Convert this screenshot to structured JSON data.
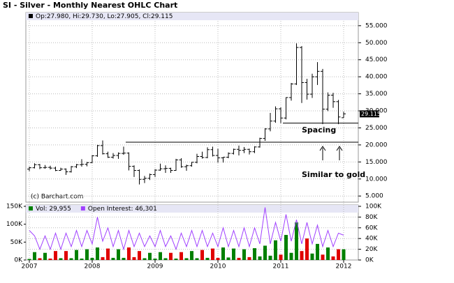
{
  "chart_data": [
    {
      "type": "ohlc",
      "title": "SI - Silver - Monthly Nearest OHLC Chart",
      "legend_text": "Op:27.980, Hi:29.730, Lo:27.905, Cl:29.115",
      "last_label": "29.115",
      "copyright": "(c) Barchart.com",
      "annotations": [
        "Spacing",
        "Similar to gold"
      ],
      "levels": [
        26.4,
        20.8
      ],
      "color": "#000000",
      "categories": [
        "2007",
        null,
        null,
        null,
        null,
        null,
        null,
        null,
        null,
        null,
        null,
        null,
        "2008",
        null,
        null,
        null,
        null,
        null,
        null,
        null,
        null,
        null,
        null,
        null,
        "2009",
        null,
        null,
        null,
        null,
        null,
        null,
        null,
        null,
        null,
        null,
        null,
        "2010",
        null,
        null,
        null,
        null,
        null,
        null,
        null,
        null,
        null,
        null,
        null,
        "2011",
        null,
        null,
        null,
        null,
        null,
        null,
        null,
        null,
        null,
        null,
        null,
        "2012"
      ],
      "open": [
        12.9,
        13.3,
        14.2,
        13.3,
        13.4,
        13.2,
        12.5,
        12.9,
        12.1,
        13.6,
        14.2,
        14.3,
        14.8,
        16.8,
        19.8,
        17.4,
        16.4,
        16.9,
        17.5,
        17.6,
        13.7,
        12.5,
        9.9,
        10.2,
        11.3,
        12.6,
        13.0,
        13.1,
        12.5,
        15.6,
        13.6,
        13.9,
        14.9,
        16.6,
        16.3,
        18.6,
        16.9,
        16.2,
        16.4,
        17.5,
        18.7,
        18.4,
        18.7,
        18.0,
        19.4,
        21.9,
        24.7,
        27.0,
        30.6,
        27.9,
        33.9,
        37.9,
        48.6,
        38.3,
        34.9,
        40.0,
        41.6,
        30.5,
        34.6,
        32.7,
        27.98
      ],
      "high": [
        13.6,
        14.6,
        14.4,
        14.1,
        13.9,
        13.6,
        13.3,
        13.1,
        13.8,
        14.4,
        15.8,
        15.0,
        17.0,
        20.0,
        21.3,
        18.0,
        17.6,
        17.8,
        19.5,
        17.8,
        14.0,
        12.8,
        10.9,
        11.6,
        12.9,
        14.5,
        14.0,
        13.3,
        15.9,
        16.1,
        14.2,
        15.0,
        17.4,
        18.0,
        19.3,
        19.5,
        18.9,
        16.4,
        17.8,
        18.9,
        19.8,
        19.4,
        18.9,
        19.6,
        22.1,
        24.9,
        29.4,
        31.3,
        31.0,
        34.0,
        38.2,
        49.8,
        49.0,
        39.4,
        40.9,
        44.3,
        42.3,
        35.4,
        35.3,
        33.2,
        29.73
      ],
      "low": [
        12.3,
        13.1,
        12.9,
        13.0,
        12.8,
        12.3,
        12.4,
        11.2,
        11.9,
        13.2,
        13.6,
        13.7,
        14.7,
        16.5,
        17.2,
        16.2,
        16.0,
        15.9,
        17.1,
        12.5,
        10.6,
        8.4,
        8.8,
        9.7,
        10.6,
        12.4,
        11.8,
        11.8,
        12.4,
        13.3,
        12.4,
        13.6,
        14.6,
        16.0,
        16.1,
        16.6,
        14.8,
        14.8,
        16.1,
        17.2,
        16.9,
        17.6,
        17.2,
        17.6,
        19.2,
        21.2,
        24.0,
        26.5,
        26.4,
        27.5,
        33.0,
        37.6,
        32.3,
        33.3,
        33.8,
        37.6,
        26.1,
        29.9,
        30.9,
        26.1,
        27.905
      ],
      "close": [
        13.3,
        14.2,
        13.3,
        13.4,
        13.2,
        12.5,
        12.9,
        12.1,
        13.6,
        14.2,
        14.3,
        14.8,
        16.8,
        19.8,
        17.4,
        16.4,
        16.9,
        17.5,
        17.6,
        13.7,
        12.5,
        9.9,
        10.2,
        11.3,
        12.6,
        13.0,
        13.1,
        12.5,
        15.6,
        13.6,
        13.9,
        14.9,
        16.6,
        16.3,
        18.6,
        16.9,
        16.2,
        16.4,
        17.5,
        18.7,
        18.4,
        18.7,
        18.0,
        19.4,
        21.9,
        24.7,
        27.0,
        30.6,
        27.9,
        33.9,
        37.9,
        48.6,
        38.3,
        34.9,
        40.0,
        41.6,
        30.5,
        34.6,
        32.7,
        28.2,
        29.115
      ],
      "ylim": [
        3.2,
        56.4
      ],
      "yticks": [
        {
          "value": 5,
          "label": "5.000"
        },
        {
          "value": 10,
          "label": "10.000"
        },
        {
          "value": 15,
          "label": "15.000"
        },
        {
          "value": 20,
          "label": "20.000"
        },
        {
          "value": 25,
          "label": "25.000"
        },
        {
          "value": 30,
          "label": "30.000"
        },
        {
          "value": 35,
          "label": "35.000"
        },
        {
          "value": 40,
          "label": "40.000"
        },
        {
          "value": 45,
          "label": "45.000"
        },
        {
          "value": 50,
          "label": "50.000"
        },
        {
          "value": 55,
          "label": "55.000"
        }
      ],
      "grid": true
    },
    {
      "type": "bar",
      "up_color": "#008000",
      "down_color": "#e00000",
      "series": [
        {
          "name": "Vol: 29,955",
          "color": "#008000",
          "values": [
            3000,
            22000,
            5000,
            20000,
            4000,
            25000,
            5000,
            25000,
            5000,
            28000,
            4000,
            30000,
            6000,
            35000,
            8000,
            32000,
            6000,
            30000,
            6000,
            35000,
            8000,
            25000,
            5000,
            20000,
            4000,
            22000,
            5000,
            20000,
            4000,
            22000,
            5000,
            25000,
            5000,
            28000,
            6000,
            32000,
            6000,
            35000,
            7000,
            32000,
            6000,
            30000,
            8000,
            33000,
            10000,
            40000,
            12000,
            55000,
            15000,
            70000,
            20000,
            105000,
            25000,
            60000,
            18000,
            45000,
            15000,
            35000,
            10000,
            30000,
            29955
          ]
        },
        {
          "name": "Open Interest: 46,301",
          "color": "#a040ff",
          "axis": "y2",
          "values": [
            55000,
            45000,
            20000,
            45000,
            20000,
            50000,
            20000,
            50000,
            25000,
            55000,
            25000,
            55000,
            30000,
            80000,
            35000,
            60000,
            25000,
            55000,
            20000,
            55000,
            25000,
            50000,
            25000,
            45000,
            25000,
            55000,
            25000,
            45000,
            20000,
            50000,
            25000,
            55000,
            25000,
            55000,
            25000,
            50000,
            25000,
            60000,
            25000,
            55000,
            25000,
            60000,
            25000,
            60000,
            30000,
            98000,
            30000,
            70000,
            35000,
            85000,
            35000,
            75000,
            30000,
            70000,
            30000,
            65000,
            25000,
            55000,
            25000,
            50000,
            46301
          ]
        }
      ],
      "ylim": [
        0,
        150000
      ],
      "yticks": [
        {
          "value": 0,
          "label": "0K"
        },
        {
          "value": 50000,
          "label": "50K"
        },
        {
          "value": 100000,
          "label": "100K"
        },
        {
          "value": 150000,
          "label": "150K"
        }
      ],
      "y2lim": [
        0,
        100000
      ],
      "y2ticks": [
        {
          "value": 0,
          "label": "0K"
        },
        {
          "value": 20000,
          "label": "20K"
        },
        {
          "value": 40000,
          "label": "40K"
        },
        {
          "value": 60000,
          "label": "60K"
        },
        {
          "value": 80000,
          "label": "80K"
        },
        {
          "value": 100000,
          "label": "100K"
        }
      ]
    }
  ]
}
